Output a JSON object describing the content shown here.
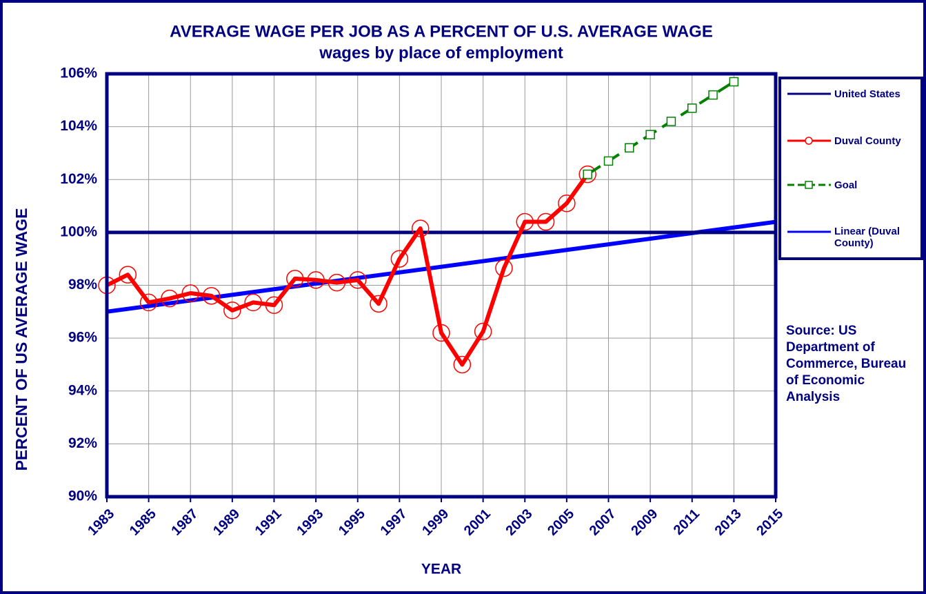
{
  "chart_data": {
    "type": "line",
    "title": "AVERAGE WAGE PER JOB AS A PERCENT OF U.S. AVERAGE WAGE",
    "subtitle": "wages by place of employment",
    "x_label": "YEAR",
    "y_label": "PERCENT OF US AVERAGE WAGE",
    "xlim": [
      1983,
      2015
    ],
    "xticks": [
      1983,
      1985,
      1987,
      1989,
      1991,
      1993,
      1995,
      1997,
      1999,
      2001,
      2003,
      2005,
      2007,
      2009,
      2011,
      2013,
      2015
    ],
    "ylim": [
      90,
      106
    ],
    "yticks": [
      {
        "value": 90,
        "label": "90%"
      },
      {
        "value": 92,
        "label": "92%"
      },
      {
        "value": 94,
        "label": "94%"
      },
      {
        "value": 96,
        "label": "96%"
      },
      {
        "value": 98,
        "label": "98%"
      },
      {
        "value": 100,
        "label": "100%"
      },
      {
        "value": 102,
        "label": "102%"
      },
      {
        "value": 104,
        "label": "104%"
      },
      {
        "value": 106,
        "label": "106%"
      }
    ],
    "grid": true,
    "legend": "right",
    "series": [
      {
        "name": "United States",
        "color": "#000080",
        "style": "solid",
        "marker": "none",
        "x": [
          1983,
          2015
        ],
        "values": [
          100,
          100
        ]
      },
      {
        "name": "Duval County",
        "color": "#ff0000",
        "style": "solid",
        "marker": "circle",
        "x": [
          1983,
          1984,
          1985,
          1986,
          1987,
          1988,
          1989,
          1990,
          1991,
          1992,
          1993,
          1994,
          1995,
          1996,
          1997,
          1998,
          1999,
          2000,
          2001,
          2002,
          2003,
          2004,
          2005,
          2006
        ],
        "values": [
          98.0,
          98.4,
          97.35,
          97.5,
          97.7,
          97.6,
          97.05,
          97.35,
          97.25,
          98.25,
          98.2,
          98.1,
          98.2,
          97.3,
          99.0,
          100.15,
          96.2,
          95.0,
          96.25,
          98.65,
          100.4,
          100.4,
          101.1,
          102.2
        ]
      },
      {
        "name": "Goal",
        "color": "#008000",
        "style": "dashed",
        "marker": "square",
        "x": [
          2006,
          2007,
          2008,
          2009,
          2010,
          2011,
          2012,
          2013
        ],
        "values": [
          102.2,
          102.7,
          103.2,
          103.7,
          104.2,
          104.7,
          105.2,
          105.7
        ]
      },
      {
        "name": "Linear (Duval County)",
        "color": "#0000ff",
        "style": "solid",
        "marker": "none",
        "x": [
          1983,
          2015
        ],
        "values": [
          97.0,
          100.4
        ]
      }
    ],
    "annotation": "Source: US Department of Commerce, Bureau of Economic Analysis"
  }
}
